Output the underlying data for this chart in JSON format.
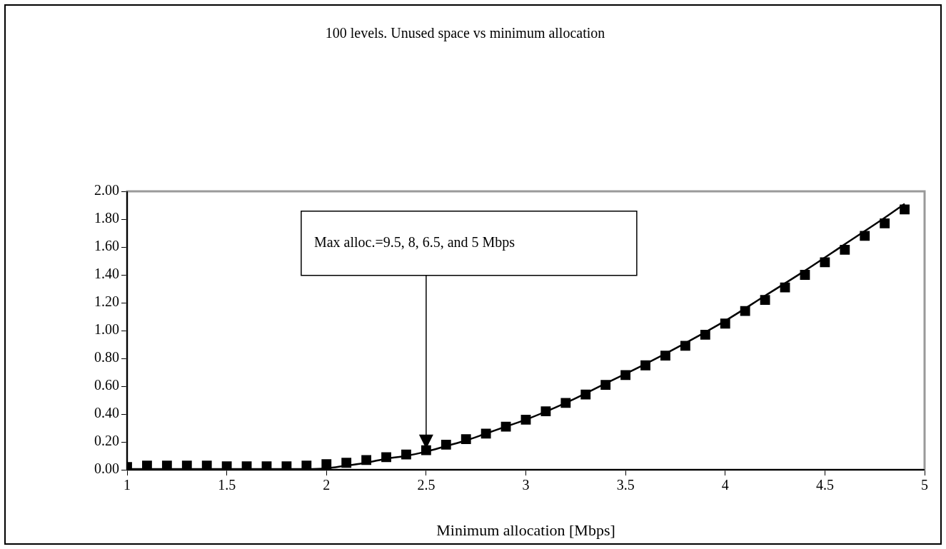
{
  "chart_data": {
    "type": "line",
    "title": "100 levels. Unused space vs minimum allocation",
    "xlabel": "Minimum allocation [Mbps]",
    "xlim": [
      1,
      5
    ],
    "xticks": [
      1,
      1.5,
      2,
      2.5,
      3,
      3.5,
      4,
      4.5,
      5
    ],
    "ylim": [
      0,
      2
    ],
    "yticks": [
      {
        "value": 0,
        "label": "0.00"
      },
      {
        "value": 0.2,
        "label": "0.20"
      },
      {
        "value": 0.4,
        "label": "0.40"
      },
      {
        "value": 0.6,
        "label": "0.60"
      },
      {
        "value": 0.8,
        "label": "0.80"
      },
      {
        "value": 1,
        "label": "1.00"
      },
      {
        "value": 1.2,
        "label": "1.20"
      },
      {
        "value": 1.4,
        "label": "1.40"
      },
      {
        "value": 1.6,
        "label": "1.60"
      },
      {
        "value": 1.8,
        "label": "1.80"
      },
      {
        "value": 2,
        "label": "2.00"
      }
    ],
    "grid": false,
    "legend": false,
    "annotations": [
      "Max alloc.=9.5, 8, 6.5, and 5 Mbps"
    ],
    "series": [
      {
        "color": "#000000",
        "marker": "none",
        "x": [
          1,
          1.5,
          1.9,
          2.0,
          2.1,
          2.2,
          2.3,
          2.4,
          2.5,
          2.6,
          2.7,
          2.8,
          2.9,
          3.0,
          3.2,
          3.4,
          3.6,
          3.8,
          4.0,
          4.2,
          4.4,
          4.6,
          4.8,
          4.9
        ],
        "values": [
          0.005,
          0.005,
          0.005,
          0.01,
          0.03,
          0.05,
          0.08,
          0.1,
          0.13,
          0.17,
          0.21,
          0.26,
          0.31,
          0.36,
          0.48,
          0.62,
          0.76,
          0.91,
          1.07,
          1.25,
          1.43,
          1.62,
          1.81,
          1.91
        ]
      },
      {
        "type": "scatter",
        "color": "#000000",
        "marker": "square",
        "x": [
          1,
          1.1,
          1.2,
          1.3,
          1.4,
          1.5,
          1.6,
          1.7,
          1.8,
          1.9,
          2.0,
          2.1,
          2.2,
          2.3,
          2.4,
          2.5,
          2.6,
          2.7,
          2.8,
          2.9,
          3.0,
          3.1,
          3.2,
          3.3,
          3.4,
          3.5,
          3.6,
          3.7,
          3.8,
          3.9,
          4.0,
          4.1,
          4.2,
          4.3,
          4.4,
          4.5,
          4.6,
          4.7,
          4.8,
          4.9
        ],
        "values": [
          0.02,
          0.03,
          0.03,
          0.03,
          0.03,
          0.025,
          0.025,
          0.025,
          0.025,
          0.03,
          0.04,
          0.05,
          0.07,
          0.09,
          0.11,
          0.14,
          0.18,
          0.22,
          0.26,
          0.31,
          0.36,
          0.42,
          0.48,
          0.54,
          0.61,
          0.68,
          0.75,
          0.82,
          0.89,
          0.97,
          1.05,
          1.14,
          1.22,
          1.31,
          1.4,
          1.49,
          1.58,
          1.68,
          1.77,
          1.87
        ]
      }
    ]
  }
}
